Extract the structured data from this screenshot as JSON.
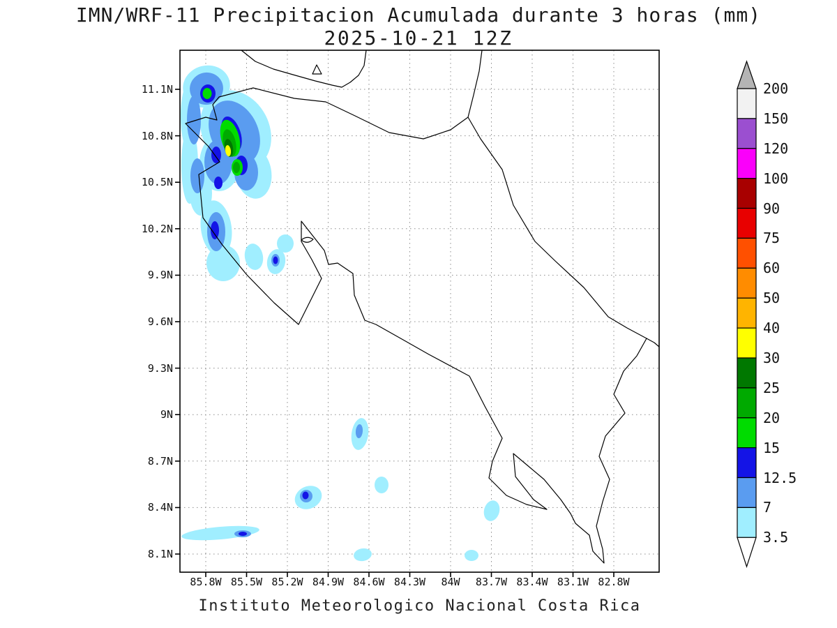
{
  "header": {
    "title": "IMN/WRF-11 Precipitacion Acumulada durante 3 horas (mm)",
    "subtitle": "2025-10-21 12Z"
  },
  "footer": {
    "caption": "Instituto Meteorologico Nacional Costa Rica"
  },
  "axes": {
    "lat_ticks": [
      "11.1N",
      "10.8N",
      "10.5N",
      "10.2N",
      "9.9N",
      "9.6N",
      "9.3N",
      "9N",
      "8.7N",
      "8.4N",
      "8.1N"
    ],
    "lon_ticks": [
      "85.8W",
      "85.5W",
      "85.2W",
      "84.9W",
      "84.6W",
      "84.3W",
      "84W",
      "83.7W",
      "83.4W",
      "83.1W",
      "82.8W"
    ]
  },
  "colorbar": {
    "units": "mm",
    "boundary_labels": [
      "200",
      "150",
      "120",
      "100",
      "90",
      "75",
      "60",
      "50",
      "40",
      "30",
      "25",
      "20",
      "15",
      "12.5",
      "7",
      "3.5"
    ],
    "segment_colors": [
      "#f2f2f2",
      "#9b4fd0",
      "#fa00fa",
      "#a80000",
      "#e80000",
      "#ff5000",
      "#ff8c00",
      "#ffb400",
      "#ffff00",
      "#007800",
      "#00aa00",
      "#00dc00",
      "#1414e6",
      "#5a9cf0",
      "#a0eeff"
    ],
    "above_color": "#b4b4b4",
    "below_color": "#ffffff"
  },
  "chart_data": {
    "type": "map",
    "title": "IMN/WRF-11 Precipitacion Acumulada durante 3 horas (mm)",
    "valid_time": "2025-10-21 12Z",
    "lat_ticks": [
      "11.1N",
      "10.8N",
      "10.5N",
      "10.2N",
      "9.9N",
      "9.6N",
      "9.3N",
      "9N",
      "8.7N",
      "8.4N",
      "8.1N"
    ],
    "lon_ticks": [
      "85.8W",
      "85.5W",
      "85.2W",
      "84.9W",
      "84.6W",
      "84.3W",
      "84W",
      "83.7W",
      "83.4W",
      "83.1W",
      "82.8W"
    ],
    "shading_levels_mm": [
      3.5,
      7,
      12.5,
      15,
      20,
      25,
      30,
      40,
      50,
      60,
      75,
      90,
      100,
      120,
      150,
      200
    ],
    "features": [
      {
        "area": "Guanacaste / Nicoya peninsula (northwest)",
        "approx": "85.9W-85.2W, 10.2N-11.2N",
        "max_shading_mm": "30-40 (yellow core)",
        "notes": "large cluster: cyan/blue shield with green cores and small yellow maximum near 85.45W,10.75N"
      },
      {
        "area": "near Gulf of Nicoya head",
        "approx": "85.05W, 9.9N",
        "max_shading_mm": "3.5-7"
      },
      {
        "area": "offshore Pacific",
        "approx": "84.7W, 8.9N",
        "max_shading_mm": "7-12.5"
      },
      {
        "area": "offshore Pacific",
        "approx": "84.55W, 8.6N",
        "max_shading_mm": "3.5-7"
      },
      {
        "area": "offshore Pacific southwest",
        "approx": "85.05W, 8.45N",
        "max_shading_mm": "12.5-15 (dark blue core)"
      },
      {
        "area": "thin band along 8.25N",
        "approx": "85.95W-85.35W",
        "max_shading_mm": "12.5-15 (small core)"
      },
      {
        "area": "south of Nicoya",
        "approx": "84.67W, 8.1N",
        "max_shading_mm": "3.5-7"
      },
      {
        "area": "Osa / Golfo Dulce",
        "approx": "83.75W, 8.4N",
        "max_shading_mm": "3.5-7"
      },
      {
        "area": "bottom center",
        "approx": "83.9W, 8.1N",
        "max_shading_mm": "3.5-7"
      }
    ]
  }
}
